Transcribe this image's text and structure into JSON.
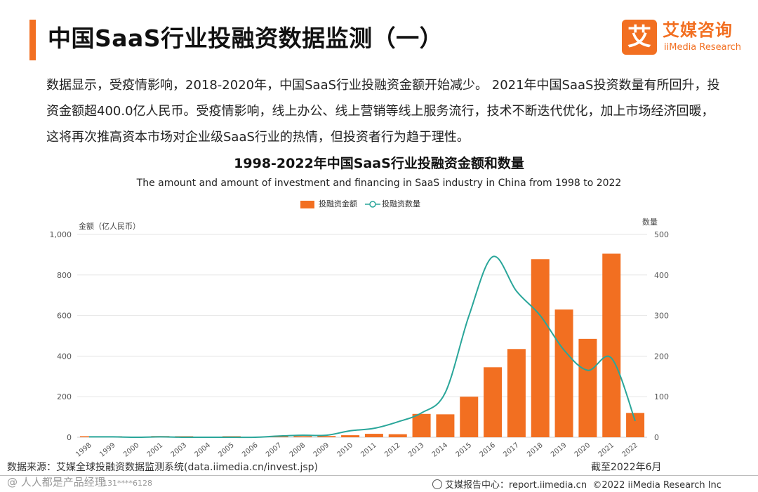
{
  "header": {
    "title": "中国SaaS行业投融资数据监测（一）",
    "logo_mark": "艾",
    "logo_cn": "艾媒咨询",
    "logo_en": "iiMedia Research"
  },
  "description": "数据显示，受疫情影响，2018-2020年，中国SaaS行业投融资金额开始减少。 2021年中国SaaS投资数量有所回升，投资金额超400.0亿人民币。受疫情影响，线上办公、线上营销等线上服务流行，技术不断迭代优化，加上市场经济回暖，这将再次推高资本市场对企业级SaaS行业的热情，但投资者行为趋于理性。",
  "colors": {
    "accent": "#f26f21",
    "line": "#2aa69a",
    "grid": "#e6e6e6"
  },
  "chart_data": {
    "type": "bar+line",
    "title": "1998-2022年中国SaaS行业投融资金额和数量",
    "subtitle": "The amount and amount of investment and financing in SaaS industry in China from 1998 to 2022",
    "categories": [
      "1998",
      "1999",
      "2000",
      "2001",
      "2003",
      "2004",
      "2005",
      "2006",
      "2007",
      "2008",
      "2009",
      "2010",
      "2011",
      "2012",
      "2013",
      "2014",
      "2015",
      "2016",
      "2017",
      "2018",
      "2019",
      "2020",
      "2021",
      "2022"
    ],
    "series": [
      {
        "name": "投融资金额",
        "type": "bar",
        "axis": "left",
        "values": [
          2,
          1,
          0,
          6,
          1,
          0,
          1,
          0,
          3,
          3,
          6,
          10,
          17,
          15,
          115,
          113,
          200,
          345,
          435,
          878,
          630,
          485,
          905,
          120
        ]
      },
      {
        "name": "投融资数量",
        "type": "line",
        "axis": "right",
        "values": [
          1,
          1,
          0,
          1,
          0,
          0,
          0,
          0,
          3,
          5,
          5,
          16,
          22,
          38,
          60,
          110,
          300,
          445,
          360,
          300,
          215,
          165,
          195,
          40
        ]
      }
    ],
    "left_axis": {
      "label": "金额（亿人民币）",
      "ylim": [
        0,
        1000
      ],
      "ticks": [
        "0",
        "200",
        "400",
        "600",
        "800",
        "1,000"
      ]
    },
    "right_axis": {
      "label": "数量",
      "ylim": [
        0,
        500
      ],
      "ticks": [
        "0",
        "100",
        "200",
        "300",
        "400",
        "500"
      ]
    },
    "grid": true,
    "legend_position": "top-center"
  },
  "footer": {
    "source": "数据来源：艾媒全球投融资数据监测系统(data.iimedia.cn/invest.jsp)",
    "date_note": "截至2022年6月",
    "watermark": "@ 人人都是产品经理",
    "watermark_id": "131****6128",
    "report_center": "艾媒报告中心：report.iimedia.cn",
    "copyright": "©2022 iiMedia Research Inc"
  }
}
